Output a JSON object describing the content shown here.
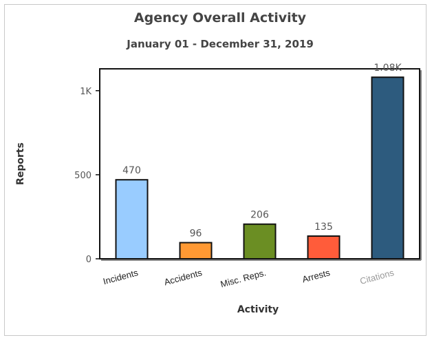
{
  "chart_data": {
    "type": "bar",
    "title": "Agency Overall Activity",
    "subtitle": "January 01 - December 31, 2019",
    "xlabel": "Activity",
    "ylabel": "Reports",
    "categories": [
      "Incidents",
      "Accidents",
      "Misc. Reps.",
      "Arrests",
      "Citations"
    ],
    "values": [
      470,
      96,
      206,
      135,
      1080
    ],
    "value_labels": [
      "470",
      "96",
      "206",
      "135",
      "1.08K"
    ],
    "colors": [
      "#99ccff",
      "#ff9933",
      "#6b8e23",
      "#ff5c3a",
      "#2d5b7e"
    ],
    "yticks": [
      0,
      500,
      1000
    ],
    "ytick_labels": [
      "0",
      "500",
      "1K"
    ],
    "ylim": [
      0,
      1130
    ],
    "grid": false
  }
}
